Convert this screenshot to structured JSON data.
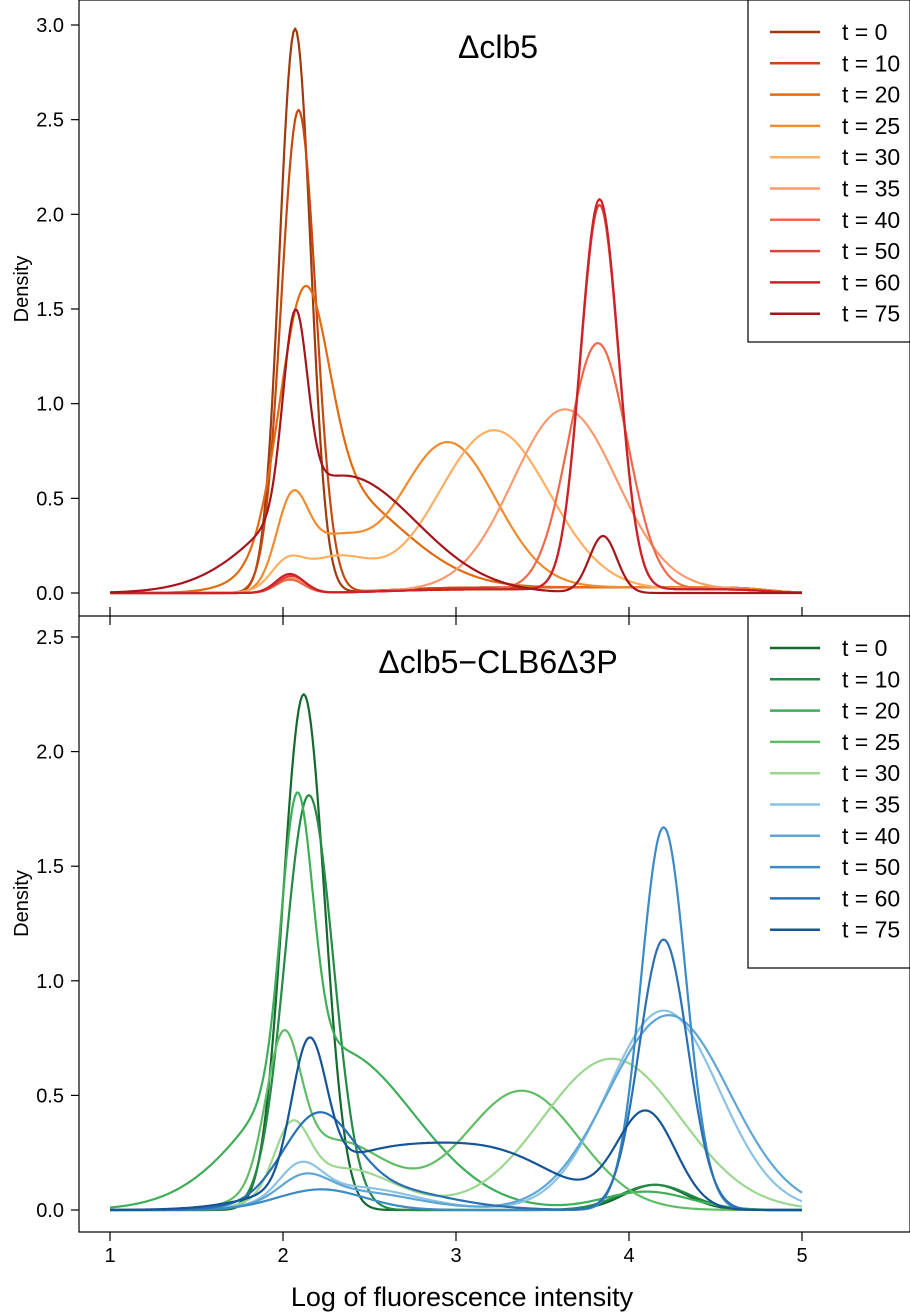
{
  "figure": {
    "xlabel": "Log of fluorescence intensity"
  },
  "chart_data": [
    {
      "type": "line",
      "title": "Δclb5",
      "xlabel": "Log of fluorescence intensity",
      "ylabel": "Density",
      "xlim": [
        1,
        5
      ],
      "ylim": [
        0,
        3.0
      ],
      "xticks": [
        1,
        2,
        3,
        4,
        5
      ],
      "yticks": [
        "0.0",
        "0.5",
        "1.0",
        "1.5",
        "2.0",
        "2.5",
        "3.0"
      ],
      "grid": false,
      "legend_position": "top-right",
      "series": [
        {
          "name": "t = 0",
          "color": "#9e3a0b",
          "peaks": [
            [
              2.07,
              2.98,
              0.09
            ]
          ],
          "tail": 0.03
        },
        {
          "name": "t = 10",
          "color": "#c4480f",
          "peaks": [
            [
              2.09,
              2.55,
              0.1
            ]
          ],
          "tail": 0.03
        },
        {
          "name": "t = 20",
          "color": "#e26b10",
          "peaks": [
            [
              2.12,
              1.22,
              0.14
            ],
            [
              2.3,
              0.45,
              0.3
            ],
            [
              2.7,
              0.12,
              0.3
            ]
          ],
          "tail": 0.03
        },
        {
          "name": "t = 25",
          "color": "#f08b2e",
          "peaks": [
            [
              2.05,
              0.42,
              0.09
            ],
            [
              2.28,
              0.25,
              0.18
            ],
            [
              2.95,
              0.77,
              0.28
            ]
          ],
          "tail": 0.03
        },
        {
          "name": "t = 30",
          "color": "#fdb063",
          "peaks": [
            [
              2.02,
              0.12,
              0.09
            ],
            [
              2.3,
              0.18,
              0.2
            ],
            [
              3.22,
              0.84,
              0.32
            ]
          ],
          "tail": 0.02
        },
        {
          "name": "t = 35",
          "color": "#fa9a6f",
          "peaks": [
            [
              2.04,
              0.08,
              0.08
            ],
            [
              3.63,
              0.95,
              0.3
            ]
          ],
          "tail": 0.02
        },
        {
          "name": "t = 40",
          "color": "#f06a4a",
          "peaks": [
            [
              2.04,
              0.07,
              0.08
            ],
            [
              3.82,
              1.3,
              0.17
            ]
          ],
          "tail": 0.02
        },
        {
          "name": "t = 50",
          "color": "#e2403a",
          "peaks": [
            [
              2.05,
              0.09,
              0.08
            ],
            [
              3.83,
              2.03,
              0.11
            ]
          ],
          "tail": 0.02
        },
        {
          "name": "t = 60",
          "color": "#cc2128",
          "peaks": [
            [
              2.04,
              0.1,
              0.08
            ],
            [
              3.83,
              2.06,
              0.11
            ]
          ],
          "tail": 0.02
        },
        {
          "name": "t = 75",
          "color": "#a4151c",
          "peaks": [
            [
              2.07,
              1.0,
              0.07
            ],
            [
              2.35,
              0.62,
              0.42
            ],
            [
              3.85,
              0.3,
              0.08
            ]
          ],
          "tail": 0.0
        }
      ]
    },
    {
      "type": "line",
      "title": "Δclb5−CLB6Δ3P",
      "xlabel": "Log of fluorescence intensity",
      "ylabel": "Density",
      "xlim": [
        1,
        5
      ],
      "ylim": [
        0,
        2.5
      ],
      "xticks": [
        1,
        2,
        3,
        4,
        5
      ],
      "yticks": [
        "0.0",
        "0.5",
        "1.0",
        "1.5",
        "2.0",
        "2.5"
      ],
      "grid": false,
      "legend_position": "top-right",
      "series": [
        {
          "name": "t = 0",
          "color": "#14692e",
          "peaks": [
            [
              2.12,
              2.25,
              0.12
            ],
            [
              4.15,
              0.11,
              0.18
            ]
          ],
          "tail": 0.0
        },
        {
          "name": "t = 10",
          "color": "#238b45",
          "peaks": [
            [
              2.15,
              1.81,
              0.14
            ],
            [
              4.15,
              0.11,
              0.2
            ]
          ],
          "tail": 0.0
        },
        {
          "name": "t = 20",
          "color": "#3fae58",
          "peaks": [
            [
              2.08,
              1.2,
              0.09
            ],
            [
              2.3,
              0.7,
              0.45
            ],
            [
              4.1,
              0.08,
              0.25
            ]
          ],
          "tail": 0.0
        },
        {
          "name": "t = 25",
          "color": "#60bd66",
          "peaks": [
            [
              2.0,
              0.6,
              0.1
            ],
            [
              2.3,
              0.3,
              0.3
            ],
            [
              3.38,
              0.52,
              0.33
            ]
          ],
          "tail": 0.0
        },
        {
          "name": "t = 30",
          "color": "#9bd78f",
          "peaks": [
            [
              2.05,
              0.28,
              0.1
            ],
            [
              2.35,
              0.18,
              0.3
            ],
            [
              3.9,
              0.66,
              0.4
            ]
          ],
          "tail": 0.0
        },
        {
          "name": "t = 35",
          "color": "#8cc3e2",
          "peaks": [
            [
              2.1,
              0.14,
              0.12
            ],
            [
              2.4,
              0.1,
              0.35
            ],
            [
              4.2,
              0.87,
              0.32
            ]
          ],
          "tail": 0.0
        },
        {
          "name": "t = 40",
          "color": "#5fa6d6",
          "peaks": [
            [
              2.12,
              0.1,
              0.14
            ],
            [
              2.4,
              0.08,
              0.35
            ],
            [
              4.23,
              0.85,
              0.35
            ]
          ],
          "tail": 0.0
        },
        {
          "name": "t = 50",
          "color": "#3a8bc6",
          "peaks": [
            [
              2.22,
              0.09,
              0.25
            ],
            [
              4.2,
              1.67,
              0.13
            ]
          ],
          "tail": 0.0
        },
        {
          "name": "t = 60",
          "color": "#2a70b3",
          "peaks": [
            [
              2.2,
              0.35,
              0.2
            ],
            [
              2.5,
              0.1,
              0.4
            ],
            [
              4.2,
              1.18,
              0.14
            ]
          ],
          "tail": 0.0
        },
        {
          "name": "t = 75",
          "color": "#155496",
          "peaks": [
            [
              2.15,
              0.6,
              0.1
            ],
            [
              2.6,
              0.25,
              0.45
            ],
            [
              3.3,
              0.18,
              0.35
            ],
            [
              4.1,
              0.42,
              0.17
            ]
          ],
          "tail": 0.0
        }
      ]
    }
  ]
}
